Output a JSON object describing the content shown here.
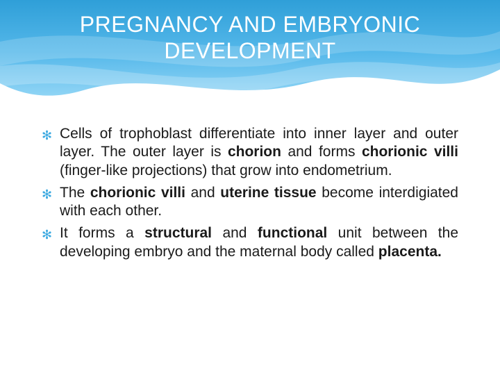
{
  "slide": {
    "title": "PREGNANCY AND EMBRYONIC DEVELOPMENT",
    "title_color": "#ffffff",
    "title_fontsize": 32,
    "banner_gradient_top": "#2f9fd8",
    "banner_gradient_mid": "#55b8ea",
    "banner_gradient_bot": "#8fd4f5",
    "background_color": "#ffffff",
    "bullet_glyph": "✻",
    "bullet_color": "#3aa8e0",
    "body_text_color": "#1a1a1a",
    "body_fontsize": 21,
    "bullets": [
      {
        "html": "Cells of trophoblast differentiate into inner layer and outer layer. The outer layer is <b>chorion</b> and forms <b>chorionic villi</b> (finger-like projections) that grow into endometrium."
      },
      {
        "html": "The <b>chorionic villi</b> and <b>uterine tissue</b> become interdigiated with each other."
      },
      {
        "html": "It forms a <b>structural</b> and <b>functional</b> unit between the developing embryo and the maternal body called <b>placenta.</b>"
      }
    ]
  }
}
